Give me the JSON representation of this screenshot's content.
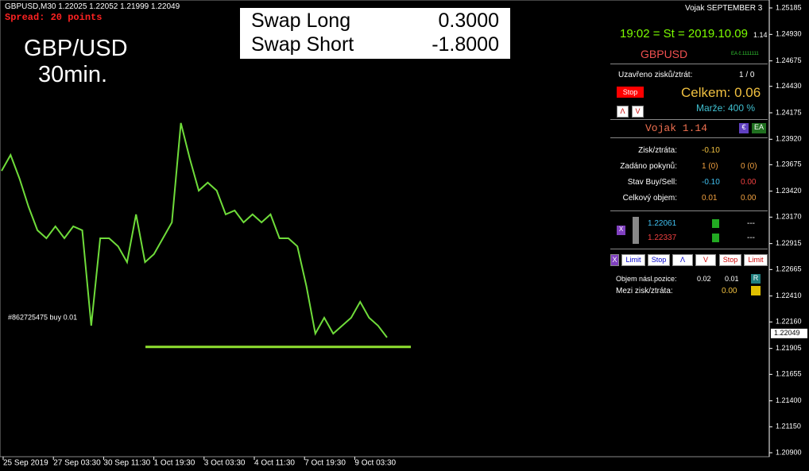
{
  "header": {
    "symbol_info": "GBPUSD,M30  1.22025 1.22052 1.21999 1.22049",
    "spread": "Spread: 20 points",
    "watermark_symbol": "GBP/USD",
    "watermark_period": "30min.",
    "account": "Vojak SEPTEMBER 3"
  },
  "swap_box": {
    "rows": [
      [
        "Swap Long",
        "0.3000"
      ],
      [
        "Swap Short",
        "-1.8000"
      ]
    ]
  },
  "chart": {
    "type": "line",
    "color": "#6fdc3a",
    "values": [
      1.23616,
      1.23769,
      1.2354,
      1.23272,
      1.23043,
      1.22966,
      1.23081,
      1.22966,
      1.23081,
      1.23043,
      1.22124,
      1.22966,
      1.22966,
      1.22889,
      1.22736,
      1.23196,
      1.22736,
      1.22813,
      1.22966,
      1.23119,
      1.24076,
      1.23731,
      1.23425,
      1.23502,
      1.23425,
      1.23196,
      1.23234,
      1.23119,
      1.23196,
      1.23119,
      1.23196,
      1.22966,
      1.22966,
      1.22889,
      1.22507,
      1.22048,
      1.22201,
      1.22048,
      1.22124,
      1.22201,
      1.22354,
      1.22201,
      1.22124,
      1.2201
    ],
    "ylim": [
      1.209,
      1.25185
    ],
    "yticks": [
      {
        "value": 1.25185,
        "label": "1.25185"
      },
      {
        "value": 1.2493,
        "label": "1.24930"
      },
      {
        "value": 1.24675,
        "label": "1.24675"
      },
      {
        "value": 1.2443,
        "label": "1.24430"
      },
      {
        "value": 1.24175,
        "label": "1.24175"
      },
      {
        "value": 1.2392,
        "label": "1.23920"
      },
      {
        "value": 1.23675,
        "label": "1.23675"
      },
      {
        "value": 1.2342,
        "label": "1.23420"
      },
      {
        "value": 1.2317,
        "label": "1.23170"
      },
      {
        "value": 1.22915,
        "label": "1.22915"
      },
      {
        "value": 1.22665,
        "label": "1.22665"
      },
      {
        "value": 1.2241,
        "label": "1.22410"
      },
      {
        "value": 1.2216,
        "label": "1.22160"
      },
      {
        "value": 1.21905,
        "label": "1.21905"
      },
      {
        "value": 1.21655,
        "label": "1.21655"
      },
      {
        "value": 1.214,
        "label": "1.21400"
      },
      {
        "value": 1.2115,
        "label": "1.21150"
      },
      {
        "value": 1.209,
        "label": "1.20900"
      }
    ],
    "x_labels": [
      "25 Sep 2019",
      "27 Sep 03:30",
      "30 Sep 11:30",
      "1 Oct 19:30",
      "3 Oct 03:30",
      "4 Oct 11:30",
      "7 Oct 19:30",
      "9 Oct 03:30"
    ],
    "current_price": {
      "value": 1.22049,
      "label": "1.22049"
    },
    "order_line": {
      "value": 1.2192,
      "label": "#862725475 buy 0.01"
    }
  },
  "panel": {
    "time": "19:02 = St = 2019.10.09",
    "version": "1.14",
    "symbol": "GBPUSD",
    "ea_id": "EA č.1111111",
    "closed_label": "Uzavřeno zisků/ztrát:",
    "closed_value": "1 / 0",
    "stop": "Stop",
    "total": "Celkem: 0.06",
    "margin": "Marže: 400 %",
    "up": "Λ",
    "down": "V",
    "name": "Vojak 1.14",
    "badge_eur": "€",
    "badge_ea": "EA",
    "stats": [
      [
        "Zisk/ztráta:",
        "-0.10",
        ""
      ],
      [
        "Zadáno pokynů:",
        "1 (0)",
        "0 (0)"
      ],
      [
        "Stav Buy/Sell:",
        "-0.10",
        "0.00"
      ],
      [
        "Celkový objem:",
        "0.01",
        "0.00"
      ]
    ],
    "levels": [
      [
        "1.22061",
        "---"
      ],
      [
        "1.22337",
        "---"
      ]
    ],
    "close_x": "X",
    "buttons": [
      "X",
      "Limit",
      "Stop",
      "Λ",
      "V",
      "Stop",
      "Limit"
    ],
    "volume_label": "Objem násl.pozice:",
    "volume_a": "0.02",
    "volume_b": "0.01",
    "volume_btn": "R",
    "between_label": "Mezi zisk/ztráta:",
    "between_value": "0.00"
  }
}
